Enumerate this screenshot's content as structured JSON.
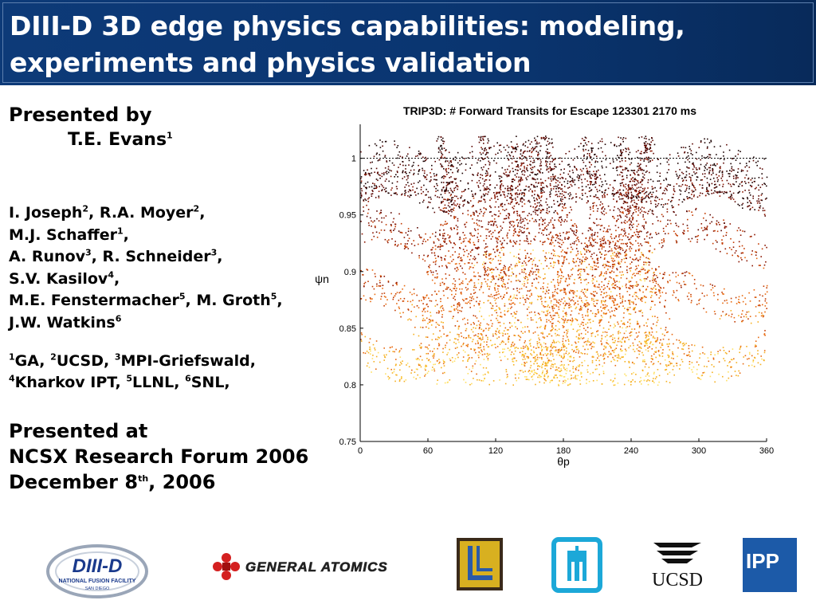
{
  "slide": {
    "title": "DIII-D 3D edge physics capabilities: modeling, experiments and physics validation",
    "presented_by": "Presented by",
    "presenter": "T.E. Evans",
    "presenter_sup": "1",
    "collaborators": [
      [
        {
          "t": "I. Joseph"
        },
        {
          "s": "2"
        },
        {
          "t": ", R.A. Moyer"
        },
        {
          "s": "2"
        },
        {
          "t": ","
        }
      ],
      [
        {
          "t": "M.J. Schaffer"
        },
        {
          "s": "1"
        },
        {
          "t": ","
        }
      ],
      [
        {
          "t": "A. Runov"
        },
        {
          "s": "3"
        },
        {
          "t": ", R. Schneider"
        },
        {
          "s": "3"
        },
        {
          "t": ","
        }
      ],
      [
        {
          "t": "S.V. Kasilov"
        },
        {
          "s": "4"
        },
        {
          "t": ","
        }
      ],
      [
        {
          "t": "M.E. Fenstermacher"
        },
        {
          "s": "5"
        },
        {
          "t": ", M. Groth"
        },
        {
          "s": "5"
        },
        {
          "t": ","
        }
      ],
      [
        {
          "t": "J.W. Watkins"
        },
        {
          "s": "6"
        }
      ]
    ],
    "affiliations": [
      [
        {
          "s": "1"
        },
        {
          "t": "GA, "
        },
        {
          "s": "2"
        },
        {
          "t": "UCSD, "
        },
        {
          "s": "3"
        },
        {
          "t": "MPI-Griefswald,"
        }
      ],
      [
        {
          "s": "4"
        },
        {
          "t": "Kharkov IPT, "
        },
        {
          "s": "5"
        },
        {
          "t": "LLNL, "
        },
        {
          "s": "6"
        },
        {
          "t": "SNL,"
        }
      ]
    ],
    "presented_at": "Presented at",
    "venue": "NCSX Research Forum 2006",
    "date_main": "December 8",
    "date_sup": "th",
    "date_tail": ", 2006"
  },
  "chart_data": {
    "type": "scatter",
    "title": "TRIP3D: # Forward Transits for Escape 123301 2170 ms",
    "xlabel": "θp",
    "ylabel": "ψn",
    "xlim": [
      0,
      360
    ],
    "ylim": [
      0.75,
      1.03
    ],
    "x_ticks": [
      "0",
      "60",
      "120",
      "180",
      "240",
      "300",
      "360"
    ],
    "y_ticks": [
      "0.75",
      "0.8",
      "0.85",
      "0.9",
      "0.95",
      "1"
    ],
    "colors": [
      "#1a0000",
      "#5a0500",
      "#8b1500",
      "#c23a00",
      "#e86a10",
      "#f6b020",
      "#ffe060"
    ],
    "separatrix_psi": 1.0,
    "lobe_centers": [
      70,
      100,
      128,
      148,
      165,
      175,
      200,
      225,
      240,
      255
    ],
    "band_centers": [
      0.97,
      0.93,
      0.88,
      0.83
    ]
  },
  "logos": {
    "diiid": "DIII-D",
    "diiid_sub": "NATIONAL FUSION FACILITY",
    "diiid_sub2": "SAN DIEGO",
    "ga": "GENERAL ATOMICS",
    "ucsd": "UCSD",
    "ipp": "IPP",
    "colors": {
      "ga_red": "#d42020",
      "ucsd_blue": "#1b4d8c",
      "sandia_cyan": "#1ca8d8",
      "ipp_blue": "#1c5aa8",
      "llnl_gold": "#e8c020"
    }
  }
}
